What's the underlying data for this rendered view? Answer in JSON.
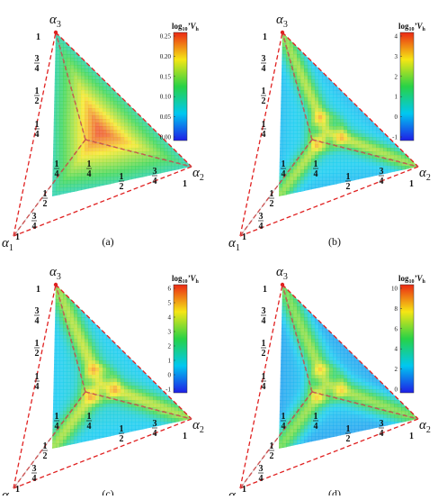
{
  "figure": {
    "panels": [
      {
        "label": "(a)",
        "colorbar": {
          "title_base": "log",
          "title_sub": "10",
          "title_var": "’V",
          "title_var_sub": "h",
          "ticks": [
            "0.25",
            "0.20",
            "0.15",
            "0.10",
            "0.05",
            "0.00"
          ]
        }
      },
      {
        "label": "(b)",
        "colorbar": {
          "title_base": "log",
          "title_sub": "10",
          "title_var": "’V",
          "title_var_sub": "h",
          "ticks": [
            "4",
            "3",
            "2",
            "1",
            "0",
            "-1"
          ]
        }
      },
      {
        "label": "(c)",
        "colorbar": {
          "title_base": "log",
          "title_sub": "10",
          "title_var": "’V",
          "title_var_sub": "h",
          "ticks": [
            "6",
            "5",
            "4",
            "3",
            "2",
            "1",
            "0",
            "-1"
          ]
        }
      },
      {
        "label": "(d)",
        "colorbar": {
          "title_base": "log",
          "title_sub": "10",
          "title_var": "’V",
          "title_var_sub": "h",
          "ticks": [
            "10",
            "8",
            "6",
            "4",
            "2",
            "0"
          ]
        }
      }
    ],
    "axes": {
      "a1": {
        "sym": "α",
        "sub": "1"
      },
      "a2": {
        "sym": "α",
        "sub": "2"
      },
      "a3": {
        "sym": "α",
        "sub": "3"
      }
    },
    "tick_one": "1",
    "tick_fracs": [
      {
        "num": "1",
        "den": "4"
      },
      {
        "num": "1",
        "den": "2"
      },
      {
        "num": "3",
        "den": "4"
      }
    ]
  },
  "chart_data": [
    {
      "type": "heatmap",
      "title": "",
      "subtitle": "(a)",
      "axes": [
        "α1",
        "α2",
        "α3"
      ],
      "domain": "ternary simplex α1+α2+α3=1",
      "colorbar_label": "log10 ’Vh",
      "color_range": [
        0.0,
        0.25
      ],
      "colormap": "rainbow (blue-cyan-green-yellow-red)",
      "description_of_values": {
        "centroid": 0.22,
        "near_vertices": 0.1,
        "edges": 0.12
      }
    },
    {
      "type": "heatmap",
      "title": "",
      "subtitle": "(b)",
      "axes": [
        "α1",
        "α2",
        "α3"
      ],
      "domain": "ternary simplex α1+α2+α3=1",
      "colorbar_label": "log10 ’Vh",
      "color_range": [
        -1,
        4
      ],
      "colormap": "rainbow (blue-cyan-green-yellow-red)",
      "description_of_values": {
        "bisectors": 1.5,
        "background": 0.3
      }
    },
    {
      "type": "heatmap",
      "title": "",
      "subtitle": "(c)",
      "axes": [
        "α1",
        "α2",
        "α3"
      ],
      "domain": "ternary simplex α1+α2+α3=1",
      "colorbar_label": "log10 ’Vh",
      "color_range": [
        -1,
        6.3
      ],
      "colormap": "rainbow (blue-cyan-green-yellow-red)",
      "description_of_values": {
        "bisectors": 2.5,
        "background": 0.5
      }
    },
    {
      "type": "heatmap",
      "title": "",
      "subtitle": "(d)",
      "axes": [
        "α1",
        "α2",
        "α3"
      ],
      "domain": "ternary simplex α1+α2+α3=1",
      "colorbar_label": "log10 ’Vh",
      "color_range": [
        -1,
        11
      ],
      "colormap": "rainbow (blue-cyan-green-yellow-red)",
      "description_of_values": {
        "bisectors": 4,
        "background": 1
      }
    }
  ]
}
